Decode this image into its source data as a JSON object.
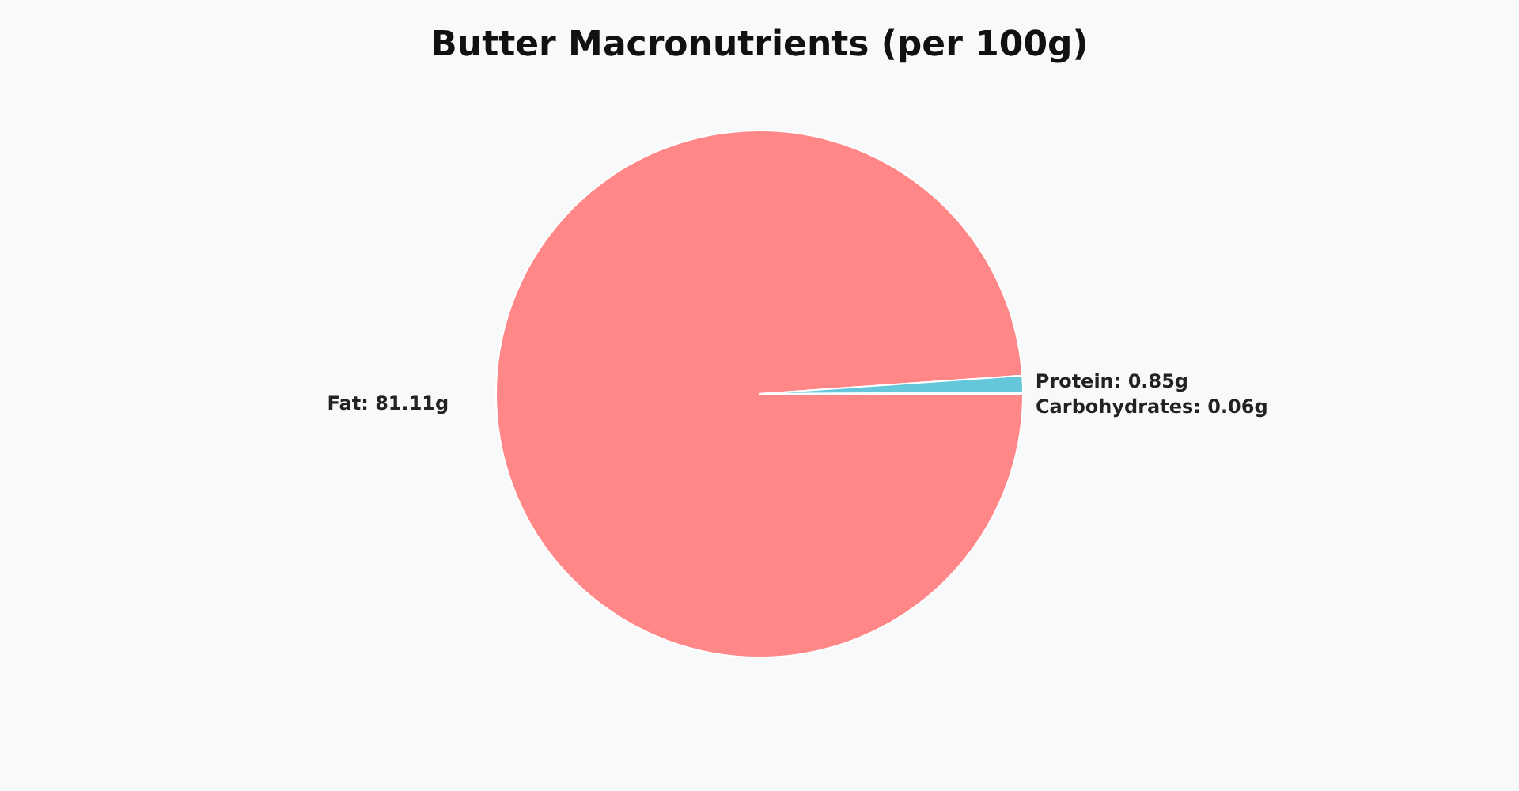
{
  "chart_data": {
    "type": "pie",
    "title": "Butter Macronutrients (per 100g)",
    "categories": [
      "Fat",
      "Protein",
      "Carbohydrates"
    ],
    "values": [
      81.11,
      0.85,
      0.06
    ],
    "colors": [
      "#ff8787",
      "#66c7db",
      "#ffd43b"
    ],
    "value_labels": [
      "81.11g",
      "0.85g",
      "0.06g"
    ],
    "legend": false
  }
}
